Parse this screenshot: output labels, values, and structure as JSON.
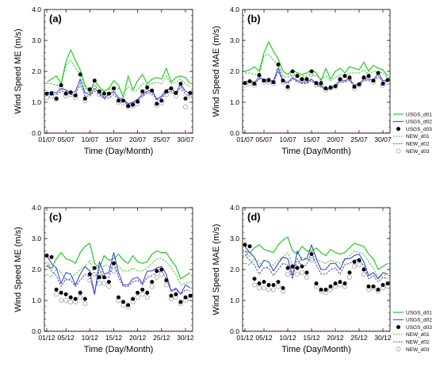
{
  "legend_entries": [
    {
      "label": "USGS_d01",
      "color": "#22cc22",
      "style": "line"
    },
    {
      "label": "USGS_d02",
      "color": "#3333cc",
      "style": "line"
    },
    {
      "label": "USGS_d03",
      "color": "#000000",
      "style": "filled-dot"
    },
    {
      "label": "NEW_d01",
      "color": "#22cc22",
      "style": "dashed"
    },
    {
      "label": "NEW_d02",
      "color": "#3333cc",
      "style": "dashed"
    },
    {
      "label": "NEW_d03",
      "color": "#999999",
      "style": "open-circle"
    }
  ],
  "chart_data": [
    {
      "type": "line",
      "panel_label": "(a)",
      "xlabel": "Time (Day/Month)",
      "ylabel": "Wind Speed ME (m/s)",
      "ylim": [
        0,
        4
      ],
      "yticks": [
        "0.0",
        "1.0",
        "2.0",
        "3.0",
        "4.0"
      ],
      "xlim": [
        0.5,
        31.5
      ],
      "x_tick_positions": [
        1,
        5,
        10,
        15,
        20,
        25,
        30
      ],
      "x_tick_labels": [
        "01/07",
        "05/07",
        "10/07",
        "15/07",
        "20/07",
        "25/07",
        "30/07"
      ],
      "grid": false,
      "x": [
        1,
        2,
        3,
        4,
        5,
        6,
        7,
        8,
        9,
        10,
        11,
        12,
        13,
        14,
        15,
        16,
        17,
        18,
        19,
        20,
        21,
        22,
        23,
        24,
        25,
        26,
        27,
        28,
        29,
        30,
        31
      ],
      "series": [
        {
          "name": "USGS_d01",
          "values": [
            1.65,
            1.75,
            1.85,
            1.6,
            2.3,
            2.7,
            2.35,
            2.05,
            1.55,
            1.3,
            1.7,
            1.5,
            1.35,
            1.45,
            1.7,
            1.55,
            1.15,
            1.85,
            1.4,
            1.7,
            1.9,
            1.6,
            1.75,
            1.8,
            1.75,
            2.1,
            1.65,
            1.8,
            1.85,
            1.8,
            1.6
          ]
        },
        {
          "name": "USGS_d02",
          "values": [
            1.3,
            1.35,
            1.3,
            1.45,
            1.4,
            1.3,
            1.35,
            1.75,
            1.3,
            1.25,
            1.45,
            1.3,
            1.15,
            1.25,
            1.35,
            1.15,
            1.1,
            0.95,
            1.0,
            1.1,
            1.25,
            1.35,
            1.4,
            1.1,
            1.2,
            1.4,
            1.45,
            1.3,
            1.6,
            1.35,
            1.3
          ]
        },
        {
          "name": "USGS_d03",
          "values": [
            1.28,
            1.28,
            1.12,
            1.55,
            1.28,
            1.32,
            1.22,
            1.9,
            1.12,
            1.42,
            1.7,
            1.35,
            1.28,
            1.28,
            1.45,
            1.05,
            1.05,
            0.88,
            0.92,
            1.02,
            1.35,
            1.48,
            1.38,
            0.95,
            1.05,
            1.35,
            1.45,
            1.3,
            1.6,
            1.12,
            1.3
          ]
        },
        {
          "name": "NEW_d01",
          "values": [
            1.6,
            1.6,
            1.55,
            1.55,
            2.2,
            2.35,
            2.1,
            1.9,
            1.45,
            1.4,
            1.55,
            1.4,
            1.4,
            1.4,
            1.5,
            1.45,
            1.3,
            1.5,
            1.35,
            1.4,
            1.6,
            1.55,
            1.6,
            1.65,
            1.6,
            1.85,
            1.6,
            1.65,
            1.75,
            1.6,
            1.5
          ]
        },
        {
          "name": "NEW_d02",
          "values": [
            1.25,
            1.25,
            1.25,
            1.35,
            1.35,
            1.25,
            1.25,
            1.6,
            1.2,
            1.2,
            1.35,
            1.25,
            1.1,
            1.15,
            1.25,
            1.1,
            1.05,
            0.9,
            0.95,
            1.05,
            1.2,
            1.3,
            1.3,
            1.05,
            1.15,
            1.3,
            1.35,
            1.25,
            1.5,
            1.25,
            1.2
          ]
        },
        {
          "name": "NEW_d03",
          "values": [
            1.15,
            1.2,
            1.1,
            1.45,
            1.2,
            1.25,
            1.15,
            1.55,
            1.05,
            1.3,
            1.5,
            1.25,
            1.2,
            1.2,
            1.35,
            1.0,
            0.98,
            0.85,
            0.88,
            0.95,
            1.25,
            1.35,
            1.3,
            0.9,
            0.98,
            1.25,
            1.35,
            1.2,
            1.45,
            0.85,
            1.2
          ]
        }
      ]
    },
    {
      "type": "line",
      "panel_label": "(b)",
      "xlabel": "Time (Day/Month)",
      "ylabel": "Wind Speed MAE (m/s)",
      "ylim": [
        0,
        4
      ],
      "yticks": [
        "0.0",
        "1.0",
        "2.0",
        "3.0",
        "4.0"
      ],
      "xlim": [
        0.5,
        31.5
      ],
      "x_tick_positions": [
        1,
        5,
        10,
        15,
        20,
        25,
        30
      ],
      "x_tick_labels": [
        "01/07",
        "05/07",
        "10/07",
        "15/07",
        "20/07",
        "25/07",
        "30/07"
      ],
      "grid": false,
      "x": [
        1,
        2,
        3,
        4,
        5,
        6,
        7,
        8,
        9,
        10,
        11,
        12,
        13,
        14,
        15,
        16,
        17,
        18,
        19,
        20,
        21,
        22,
        23,
        24,
        25,
        26,
        27,
        28,
        29,
        30,
        31
      ],
      "series": [
        {
          "name": "USGS_d01",
          "values": [
            2.0,
            2.05,
            2.15,
            2.0,
            2.6,
            2.95,
            2.65,
            2.4,
            2.0,
            1.9,
            2.05,
            1.95,
            1.9,
            1.95,
            2.05,
            1.95,
            1.7,
            2.1,
            1.75,
            2.0,
            2.1,
            1.95,
            2.15,
            2.1,
            2.05,
            2.3,
            2.0,
            2.2,
            2.1,
            2.05,
            1.85
          ]
        },
        {
          "name": "USGS_d02",
          "values": [
            1.65,
            1.7,
            1.65,
            1.8,
            1.75,
            1.7,
            1.7,
            2.1,
            1.7,
            1.65,
            1.8,
            1.7,
            1.65,
            1.65,
            1.75,
            1.6,
            1.55,
            1.4,
            1.45,
            1.55,
            1.7,
            1.7,
            1.75,
            1.55,
            1.6,
            1.75,
            1.75,
            1.7,
            1.95,
            1.7,
            1.7
          ]
        },
        {
          "name": "USGS_d03",
          "values": [
            1.62,
            1.68,
            1.6,
            1.88,
            1.7,
            1.72,
            1.65,
            2.22,
            1.7,
            1.5,
            2.0,
            1.85,
            1.75,
            1.75,
            2.0,
            1.62,
            1.62,
            1.45,
            1.48,
            1.52,
            1.75,
            1.85,
            1.8,
            1.5,
            1.58,
            1.8,
            1.85,
            1.7,
            1.95,
            1.6,
            1.72
          ]
        },
        {
          "name": "NEW_d01",
          "values": [
            1.95,
            1.95,
            1.9,
            1.9,
            2.5,
            2.55,
            2.35,
            2.2,
            1.85,
            1.8,
            1.9,
            1.85,
            1.85,
            1.85,
            1.9,
            1.85,
            1.75,
            1.85,
            1.7,
            1.8,
            1.9,
            1.85,
            1.95,
            1.95,
            1.95,
            2.05,
            1.9,
            2.0,
            2.0,
            1.95,
            1.8
          ]
        },
        {
          "name": "NEW_d02",
          "values": [
            1.6,
            1.65,
            1.6,
            1.75,
            1.7,
            1.65,
            1.65,
            2.0,
            1.65,
            1.6,
            1.75,
            1.65,
            1.6,
            1.6,
            1.7,
            1.55,
            1.5,
            1.4,
            1.45,
            1.5,
            1.65,
            1.65,
            1.7,
            1.5,
            1.55,
            1.7,
            1.7,
            1.65,
            1.85,
            1.65,
            1.65
          ]
        },
        {
          "name": "NEW_d03",
          "values": [
            1.55,
            1.6,
            1.55,
            1.8,
            1.65,
            1.65,
            1.6,
            2.05,
            1.65,
            1.45,
            1.9,
            1.75,
            1.7,
            1.7,
            1.9,
            1.55,
            1.55,
            1.4,
            1.45,
            1.5,
            1.7,
            1.75,
            1.75,
            1.45,
            1.55,
            1.75,
            1.8,
            1.65,
            1.85,
            1.55,
            1.65
          ]
        }
      ]
    },
    {
      "type": "line",
      "panel_label": "(c)",
      "xlabel": "Time (Day/Month)",
      "ylabel": "Wind Speed ME (m/s)",
      "ylim": [
        0,
        4
      ],
      "yticks": [
        "0.0",
        "1.0",
        "2.0",
        "3.0",
        "4.0"
      ],
      "xlim": [
        0.5,
        31.5
      ],
      "x_tick_positions": [
        1,
        5,
        10,
        15,
        20,
        25,
        30
      ],
      "x_tick_labels": [
        "01/12",
        "05/12",
        "10/12",
        "15/12",
        "20/12",
        "25/12",
        "30/12"
      ],
      "grid": false,
      "x": [
        1,
        2,
        3,
        4,
        5,
        6,
        7,
        8,
        9,
        10,
        11,
        12,
        13,
        14,
        15,
        16,
        17,
        18,
        19,
        20,
        21,
        22,
        23,
        24,
        25,
        26,
        27,
        28,
        29,
        30,
        31
      ],
      "series": [
        {
          "name": "USGS_d01",
          "values": [
            2.1,
            2.05,
            2.35,
            2.55,
            2.35,
            2.3,
            2.2,
            2.55,
            2.75,
            2.85,
            2.2,
            2.05,
            2.45,
            2.3,
            2.35,
            2.5,
            2.3,
            2.2,
            2.45,
            2.25,
            2.2,
            2.25,
            2.5,
            2.6,
            2.55,
            2.55,
            2.3,
            2.1,
            1.7,
            1.8,
            1.9
          ]
        },
        {
          "name": "USGS_d02",
          "values": [
            2.45,
            2.2,
            2.05,
            1.55,
            1.9,
            1.85,
            1.5,
            1.85,
            2.1,
            1.95,
            1.2,
            2.25,
            1.85,
            1.9,
            2.55,
            1.9,
            1.5,
            1.5,
            1.7,
            1.75,
            1.55,
            1.95,
            1.95,
            2.05,
            2.1,
            1.85,
            1.3,
            1.4,
            1.2,
            1.5,
            1.4
          ]
        },
        {
          "name": "USGS_d03",
          "values": [
            2.45,
            2.4,
            1.35,
            1.25,
            1.2,
            1.1,
            1.05,
            1.25,
            1.05,
            1.85,
            2.05,
            1.75,
            1.75,
            1.6,
            2.2,
            1.1,
            0.95,
            0.85,
            1.05,
            1.25,
            1.35,
            1.25,
            1.6,
            1.95,
            2.0,
            1.65,
            1.15,
            1.2,
            0.95,
            1.1,
            1.15
          ]
        },
        {
          "name": "NEW_d01",
          "values": [
            1.85,
            1.75,
            2.05,
            1.9,
            1.65,
            1.7,
            1.85,
            2.0,
            2.1,
            2.3,
            1.85,
            1.75,
            2.15,
            2.1,
            2.05,
            2.1,
            1.95,
            1.95,
            2.05,
            1.95,
            1.95,
            2.05,
            2.2,
            2.35,
            2.35,
            2.25,
            2.05,
            1.85,
            1.5,
            1.55,
            1.6
          ]
        },
        {
          "name": "NEW_d02",
          "values": [
            2.15,
            1.95,
            1.8,
            1.45,
            1.7,
            1.65,
            1.45,
            1.65,
            1.85,
            1.75,
            1.2,
            2.0,
            1.7,
            1.75,
            2.25,
            1.75,
            1.45,
            1.45,
            1.6,
            1.65,
            1.5,
            1.75,
            1.8,
            1.9,
            1.95,
            1.7,
            1.3,
            1.35,
            1.2,
            1.35,
            1.3
          ]
        },
        {
          "name": "NEW_d03",
          "values": [
            2.15,
            2.1,
            1.2,
            1.0,
            1.0,
            0.95,
            0.95,
            1.1,
            0.9,
            1.65,
            1.85,
            1.55,
            1.55,
            1.45,
            1.95,
            1.0,
            0.85,
            0.78,
            0.95,
            1.1,
            1.2,
            1.1,
            1.45,
            1.75,
            1.85,
            1.5,
            1.05,
            1.1,
            0.9,
            1.0,
            1.05
          ]
        }
      ]
    },
    {
      "type": "line",
      "panel_label": "(d)",
      "xlabel": "Time (Day/Month)",
      "ylabel": "Wind Speed MAE (m/s)",
      "ylim": [
        0,
        4
      ],
      "yticks": [
        "0.0",
        "1.0",
        "2.0",
        "3.0",
        "4.0"
      ],
      "xlim": [
        0.5,
        31.5
      ],
      "x_tick_positions": [
        1,
        5,
        10,
        15,
        20,
        25,
        30
      ],
      "x_tick_labels": [
        "01/12",
        "05/12",
        "10/12",
        "15/12",
        "20/12",
        "25/12",
        "30/12"
      ],
      "grid": false,
      "x": [
        1,
        2,
        3,
        4,
        5,
        6,
        7,
        8,
        9,
        10,
        11,
        12,
        13,
        14,
        15,
        16,
        17,
        18,
        19,
        20,
        21,
        22,
        23,
        24,
        25,
        26,
        27,
        28,
        29,
        30,
        31
      ],
      "series": [
        {
          "name": "USGS_d01",
          "values": [
            2.6,
            2.55,
            2.7,
            2.8,
            2.65,
            2.6,
            2.55,
            2.8,
            2.95,
            3.05,
            2.6,
            2.5,
            2.75,
            2.6,
            2.6,
            2.7,
            2.55,
            2.45,
            2.65,
            2.55,
            2.5,
            2.55,
            2.7,
            2.85,
            2.8,
            2.75,
            2.5,
            2.35,
            2.0,
            2.1,
            2.2
          ]
        },
        {
          "name": "USGS_d02",
          "values": [
            2.75,
            2.55,
            2.4,
            2.05,
            2.3,
            2.25,
            1.95,
            2.2,
            2.4,
            2.35,
            1.8,
            2.6,
            2.3,
            2.35,
            2.8,
            2.35,
            2.0,
            2.0,
            2.2,
            2.2,
            2.0,
            2.35,
            2.35,
            2.45,
            2.5,
            2.25,
            1.8,
            1.9,
            1.7,
            1.9,
            1.85
          ]
        },
        {
          "name": "USGS_d03",
          "values": [
            2.8,
            2.75,
            1.7,
            1.55,
            1.6,
            1.5,
            1.5,
            1.6,
            1.4,
            2.05,
            2.1,
            2.05,
            2.1,
            1.9,
            2.5,
            1.55,
            1.35,
            1.35,
            1.45,
            1.55,
            1.6,
            1.55,
            1.9,
            2.25,
            2.3,
            2.0,
            1.45,
            1.45,
            1.35,
            1.5,
            1.55
          ]
        },
        {
          "name": "NEW_d01",
          "values": [
            2.2,
            2.15,
            2.35,
            2.25,
            2.05,
            2.1,
            2.15,
            2.3,
            2.4,
            2.55,
            2.15,
            2.1,
            2.4,
            2.35,
            2.3,
            2.35,
            2.25,
            2.2,
            2.3,
            2.25,
            2.2,
            2.3,
            2.45,
            2.6,
            2.55,
            2.5,
            2.25,
            2.05,
            1.75,
            1.8,
            1.85
          ]
        },
        {
          "name": "NEW_d02",
          "values": [
            2.5,
            2.3,
            2.15,
            1.85,
            2.05,
            2.05,
            1.8,
            2.0,
            2.2,
            2.15,
            1.7,
            2.35,
            2.1,
            2.15,
            2.55,
            2.15,
            1.85,
            1.85,
            2.0,
            2.05,
            1.85,
            2.15,
            2.2,
            2.3,
            2.35,
            2.1,
            1.7,
            1.8,
            1.6,
            1.75,
            1.7
          ]
        },
        {
          "name": "NEW_d03",
          "values": [
            2.5,
            2.5,
            1.5,
            1.4,
            1.4,
            1.35,
            1.35,
            1.45,
            1.3,
            1.85,
            1.95,
            1.85,
            1.9,
            1.75,
            2.3,
            1.45,
            1.3,
            1.25,
            1.35,
            1.45,
            1.5,
            1.45,
            1.75,
            2.1,
            2.15,
            1.85,
            1.35,
            1.4,
            1.3,
            1.4,
            1.45
          ]
        }
      ]
    }
  ]
}
